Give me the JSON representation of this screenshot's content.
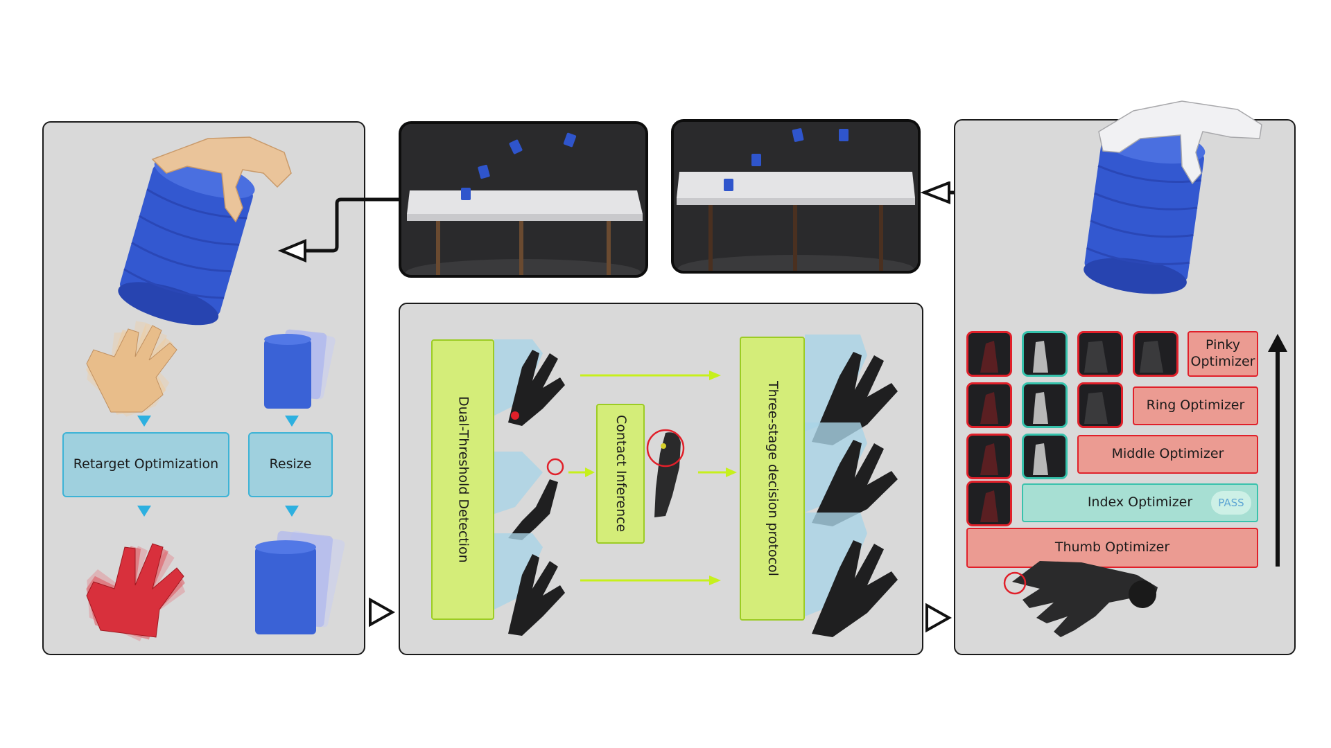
{
  "retarget": {
    "optimization_label": "Retarget Optimization",
    "resize_label": "Resize"
  },
  "detection": {
    "dual_threshold_label": "Dual-Threshold Detection",
    "contact_inference_label": "Contact Inference",
    "three_stage_label": "Three-stage decision protocol"
  },
  "optimizers": {
    "pinky": "Pinky Optimizer",
    "ring": "Ring Optimizer",
    "middle": "Middle Optimizer",
    "index": "Index Optimizer",
    "thumb": "Thumb Optimizer",
    "pass_badge": "PASS"
  },
  "colors": {
    "panel_bg": "#d9d9d9",
    "blue_box": "#9fd0de",
    "green_bar": "#d4ed79",
    "red_box": "#eb9b92",
    "teal_box": "#a7dfd3",
    "arrow_cyan": "#2db0e0",
    "arrow_lime": "#c6f01c",
    "can_blue": "#3358d0"
  }
}
